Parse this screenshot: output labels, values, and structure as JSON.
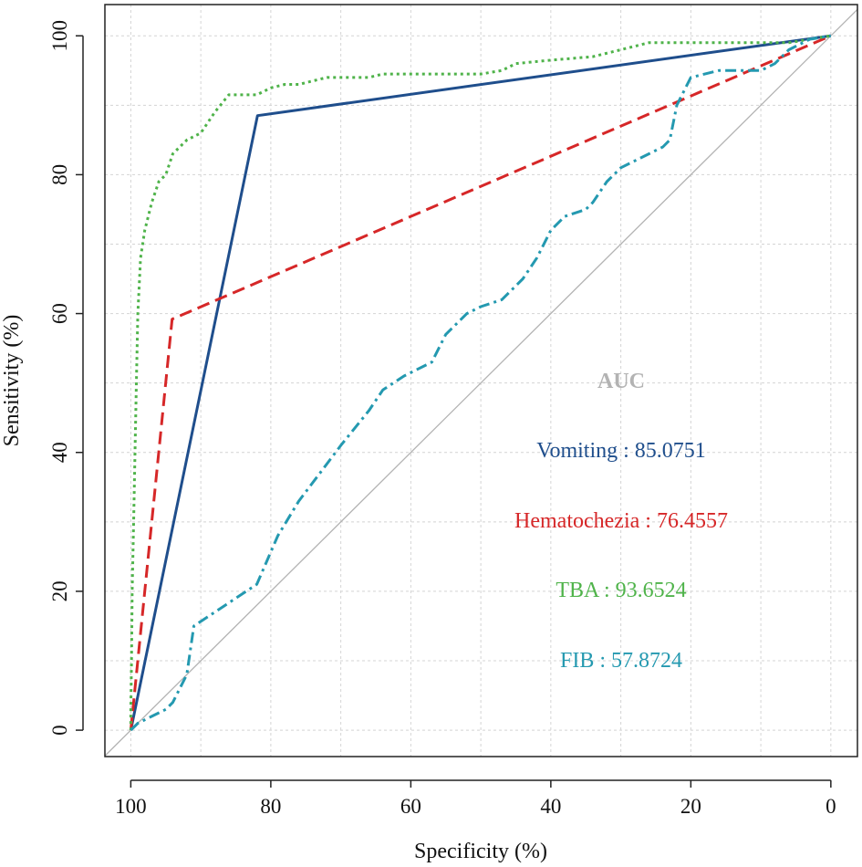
{
  "chart_data": {
    "type": "line",
    "title": "",
    "xlabel": "Specificity (%)",
    "ylabel": "Sensitivity (%)",
    "xlim": [
      103.7,
      -3.8
    ],
    "ylim": [
      -3.8,
      104.5
    ],
    "x_reversed": true,
    "grid": true,
    "x_ticks": [
      100,
      80,
      60,
      40,
      20,
      0
    ],
    "y_ticks": [
      0,
      20,
      40,
      60,
      80,
      100
    ],
    "x_tick_labels": [
      "100",
      "80",
      "60",
      "40",
      "20",
      "0"
    ],
    "y_tick_labels": [
      "0",
      "20",
      "40",
      "60",
      "80",
      "100"
    ],
    "reference_line": {
      "x": [
        100,
        0
      ],
      "y": [
        0,
        100
      ],
      "color": "#b3b3b3"
    },
    "auc_heading": "AUC",
    "auc_heading_color": "#b3b3b3",
    "series": [
      {
        "name": "Vomiting",
        "auc_label": "Vomiting : 85.0751",
        "color": "#1f4e8c",
        "dash": "solid",
        "x": [
          100,
          81.9,
          0
        ],
        "y": [
          0,
          88.5,
          100
        ]
      },
      {
        "name": "Hematochezia",
        "auc_label": "Hematochezia : 76.4557",
        "color": "#d62728",
        "dash": "dashed",
        "x": [
          100,
          94.1,
          0
        ],
        "y": [
          0,
          59.2,
          100
        ]
      },
      {
        "name": "TBA",
        "auc_label": "TBA : 93.6524",
        "color": "#4fb34a",
        "dash": "dotted",
        "x": [
          100,
          100,
          99.9,
          99.8,
          99.6,
          99.4,
          99.2,
          99,
          98.6,
          98,
          97,
          96,
          95,
          94,
          93,
          92,
          90,
          88,
          86,
          84,
          82,
          80,
          78,
          76,
          74,
          72,
          70,
          68,
          66,
          64,
          62,
          60,
          50,
          47,
          45,
          40,
          34,
          30,
          26,
          20,
          10,
          6,
          3,
          0
        ],
        "y": [
          0,
          3,
          10,
          20,
          30,
          40,
          50,
          60,
          68,
          72,
          76,
          79,
          80,
          83,
          84,
          85,
          86,
          89,
          91.5,
          91.5,
          91.5,
          92.5,
          93,
          93,
          93.5,
          94,
          94,
          94,
          94,
          94.5,
          94.5,
          94.5,
          94.5,
          95,
          96,
          96.5,
          97,
          98,
          99,
          99,
          99,
          99,
          99.5,
          100
        ]
      },
      {
        "name": "FIB",
        "auc_label": "FIB : 57.8724",
        "color": "#2499b0",
        "dash": "dashdot",
        "x": [
          100,
          99,
          97,
          95,
          94,
          92,
          91,
          88,
          85,
          82,
          79,
          76,
          73,
          70,
          66,
          64,
          61,
          57,
          55,
          52,
          50,
          47,
          44,
          42,
          40,
          38,
          35,
          34,
          32,
          30,
          28,
          26,
          24,
          23,
          22,
          20,
          16,
          14,
          12,
          10,
          8,
          6,
          3,
          0
        ],
        "y": [
          0,
          1,
          2,
          3,
          4,
          8,
          15,
          17,
          19,
          21,
          28,
          33,
          37,
          41,
          46,
          49,
          51,
          53,
          57,
          60,
          61,
          62,
          65,
          68,
          72,
          74,
          75,
          76,
          79,
          81,
          82,
          83,
          84,
          85,
          90,
          94,
          95,
          95,
          95,
          95,
          96,
          98,
          99.5,
          100
        ]
      }
    ]
  }
}
